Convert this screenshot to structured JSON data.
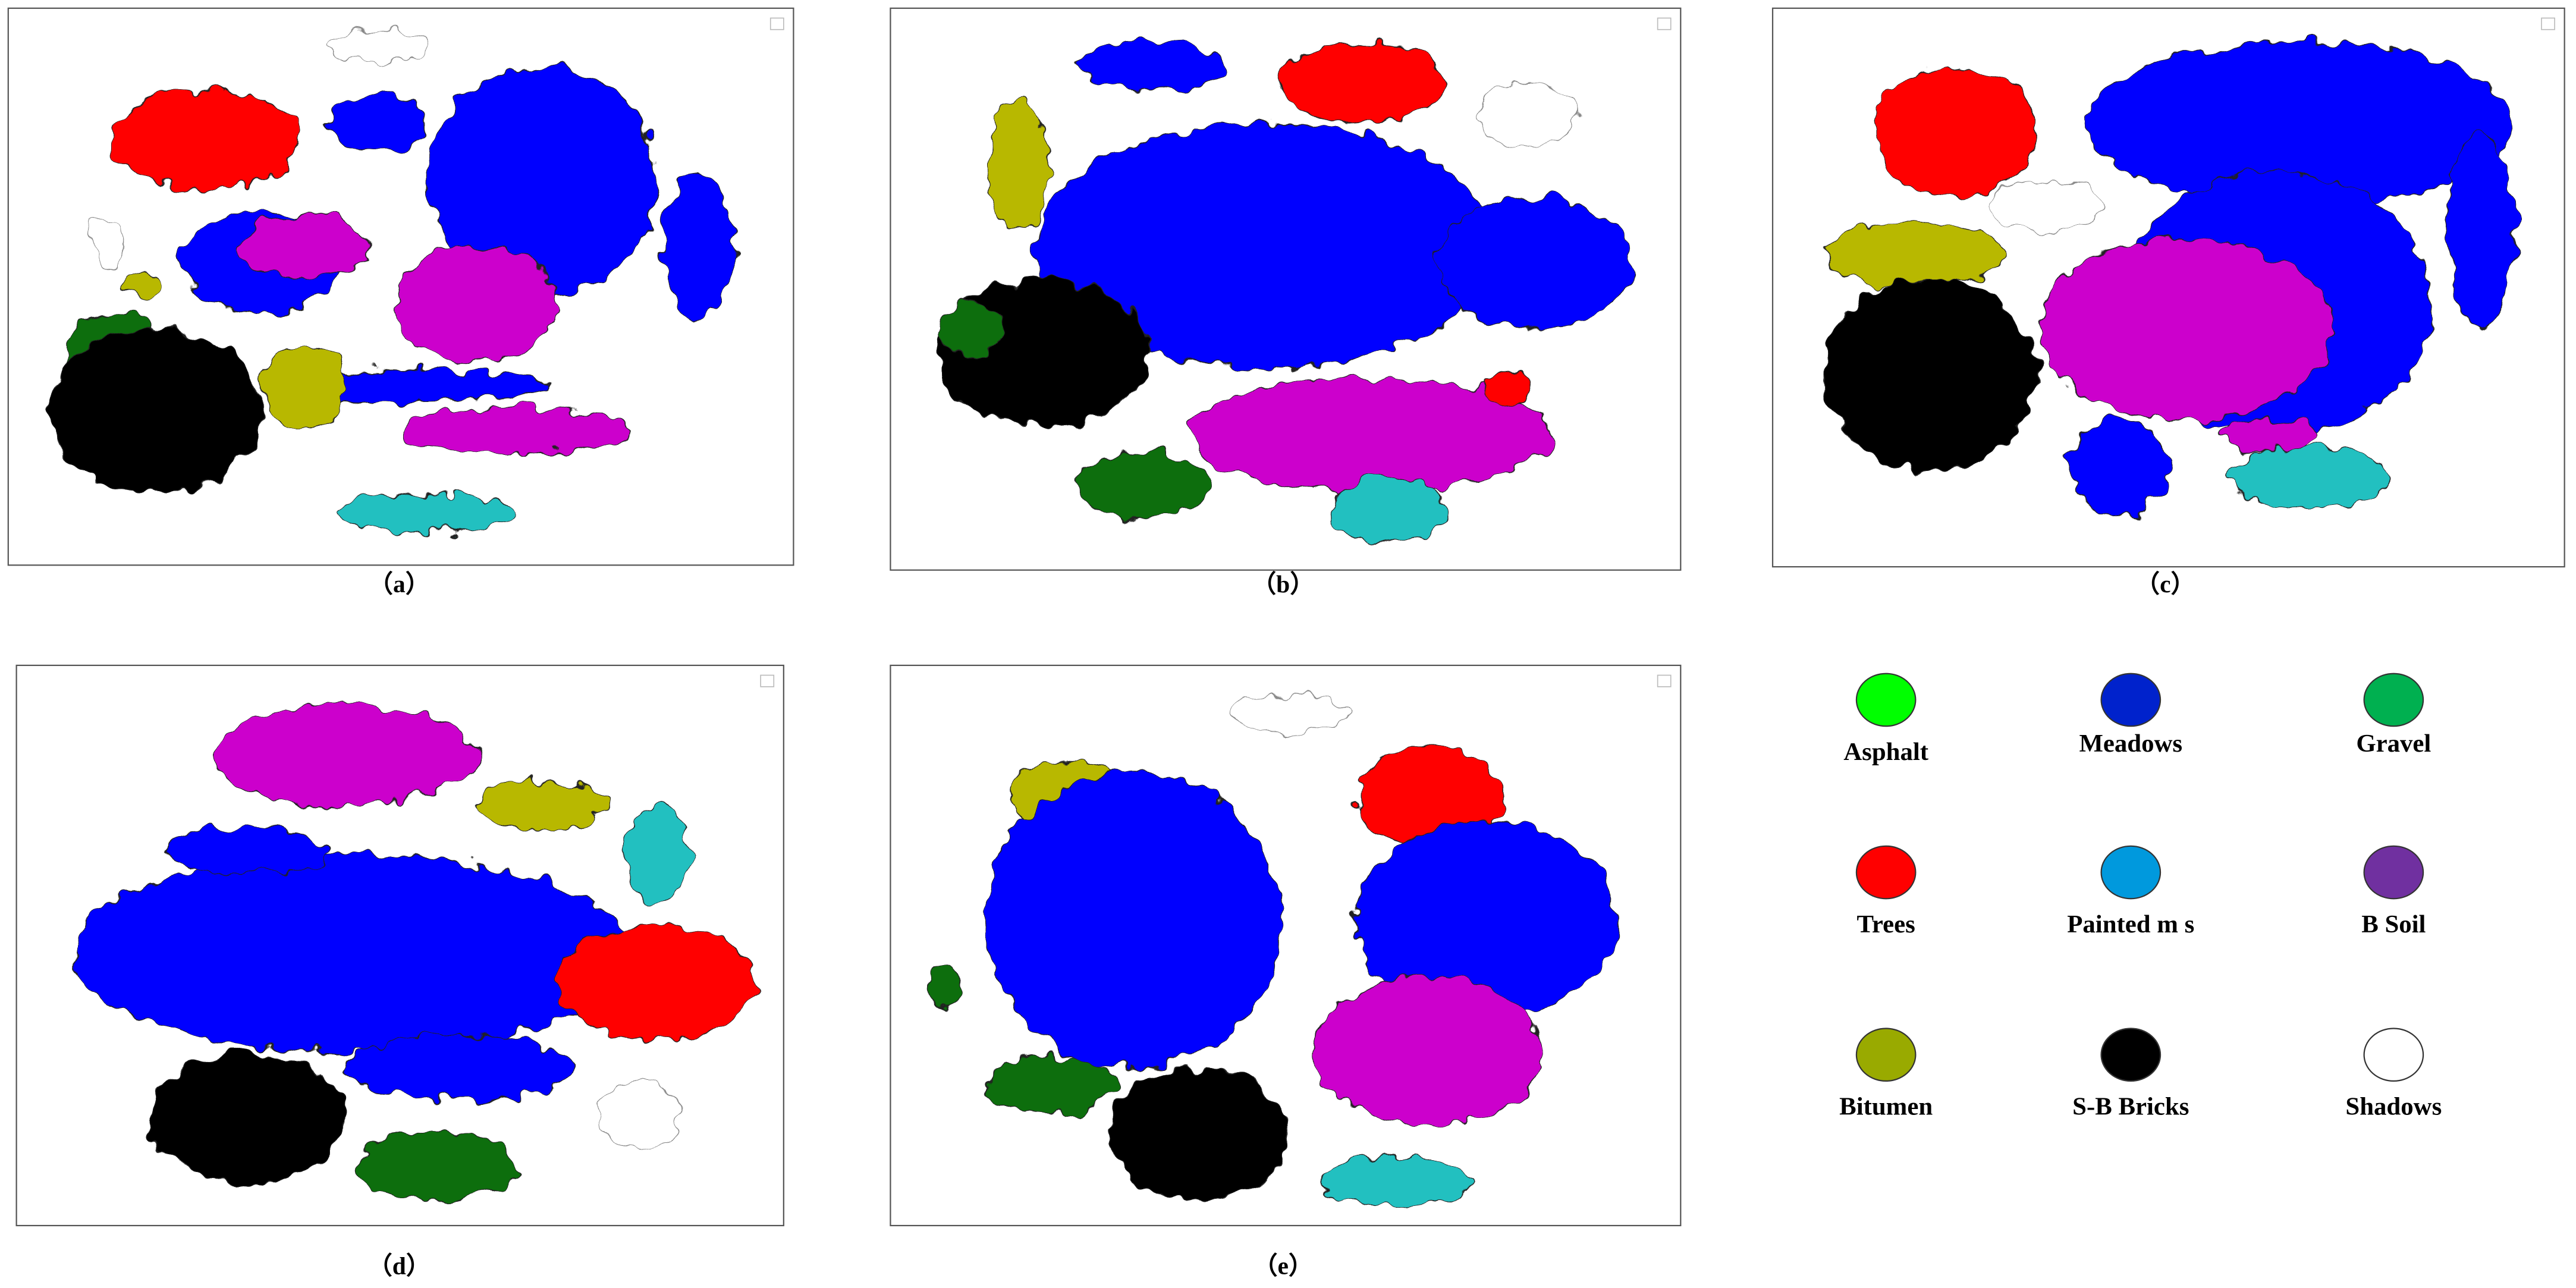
{
  "panels": [
    {
      "label": "（a）"
    },
    {
      "label": "（b）"
    },
    {
      "label": "（c）"
    },
    {
      "label": "（d）"
    },
    {
      "label": "（e）"
    }
  ],
  "legend": [
    {
      "label": "Asphalt",
      "color": "#00ff00"
    },
    {
      "label": "Meadows",
      "color": "#0022cc"
    },
    {
      "label": "Gravel",
      "color": "#00b050"
    },
    {
      "label": "Trees",
      "color": "#ff0000"
    },
    {
      "label": "Painted m s",
      "color": "#0099dd"
    },
    {
      "label": "B Soil",
      "color": "#7030a0"
    },
    {
      "label": "Bitumen",
      "color": "#99aa00"
    },
    {
      "label": "S-B Bricks",
      "color": "#000000"
    },
    {
      "label": "Shadows",
      "color": "#ffffff"
    }
  ]
}
